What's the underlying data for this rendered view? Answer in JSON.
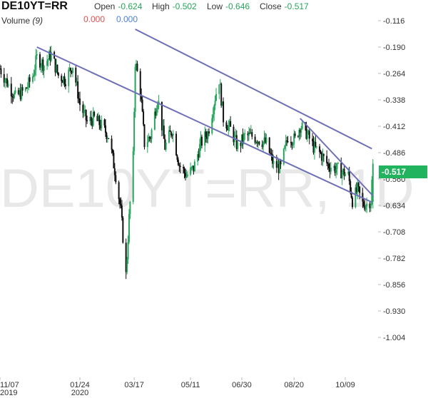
{
  "header": {
    "symbol": "DE10YT=RR",
    "open_label": "Open",
    "open_value": "-0.624",
    "high_label": "High",
    "high_value": "-0.502",
    "low_label": "Low",
    "low_value": "-0.646",
    "close_label": "Close",
    "close_value": "-0.517",
    "volume_label": "Volume",
    "volume_period": "(9)",
    "volume_value_1": "0.000",
    "volume_value_2": "0.000"
  },
  "watermark": "DE10YT=RR, 1D",
  "last_price_label": "-0.517",
  "colors": {
    "up": "#26a65b",
    "down": "#111111",
    "trendline": "#6f6fb8",
    "badge": "#22b35e",
    "watermark": "#e8e8e8"
  },
  "chart_data": {
    "type": "candlestick",
    "title": "DE10YT=RR",
    "ylim": [
      -1.05,
      -0.09
    ],
    "y_ticks": [
      "-0.116",
      "-0.190",
      "-0.264",
      "-0.338",
      "-0.412",
      "-0.486",
      "-0.560",
      "-0.634",
      "-0.708",
      "-0.782",
      "-0.856",
      "-0.930",
      "-1.004"
    ],
    "x_ticks": [
      {
        "label": "11/07",
        "sub": "2019"
      },
      {
        "label": "01/24",
        "sub": "2020"
      },
      {
        "label": "03/17",
        "sub": ""
      },
      {
        "label": "05/11",
        "sub": ""
      },
      {
        "label": "06/30",
        "sub": ""
      },
      {
        "label": "08/20",
        "sub": ""
      },
      {
        "label": "10/09",
        "sub": ""
      }
    ],
    "trendlines": [
      {
        "x1": "2019-12-13",
        "y1": -0.19,
        "x2": "2020-11-04",
        "y2": -0.625
      },
      {
        "x1": "2020-03-18",
        "y1": -0.14,
        "x2": "2020-11-04",
        "y2": -0.475
      },
      {
        "x1": "2020-08-26",
        "y1": -0.39,
        "x2": "2020-11-05",
        "y2": -0.607
      }
    ],
    "close_path": [
      [
        "2019-11-07",
        -0.25
      ],
      [
        "2019-11-14",
        -0.29
      ],
      [
        "2019-11-22",
        -0.33
      ],
      [
        "2019-12-02",
        -0.31
      ],
      [
        "2019-12-09",
        -0.27
      ],
      [
        "2019-12-13",
        -0.22
      ],
      [
        "2019-12-20",
        -0.24
      ],
      [
        "2019-12-27",
        -0.21
      ],
      [
        "2020-01-03",
        -0.27
      ],
      [
        "2020-01-10",
        -0.28
      ],
      [
        "2020-01-17",
        -0.24
      ],
      [
        "2020-01-24",
        -0.35
      ],
      [
        "2020-01-31",
        -0.4
      ],
      [
        "2020-02-07",
        -0.39
      ],
      [
        "2020-02-14",
        -0.41
      ],
      [
        "2020-02-21",
        -0.44
      ],
      [
        "2020-02-28",
        -0.55
      ],
      [
        "2020-03-04",
        -0.65
      ],
      [
        "2020-03-09",
        -0.83
      ],
      [
        "2020-03-12",
        -0.67
      ],
      [
        "2020-03-16",
        -0.5
      ],
      [
        "2020-03-18",
        -0.23
      ],
      [
        "2020-03-23",
        -0.31
      ],
      [
        "2020-03-27",
        -0.46
      ],
      [
        "2020-04-02",
        -0.44
      ],
      [
        "2020-04-09",
        -0.33
      ],
      [
        "2020-04-16",
        -0.47
      ],
      [
        "2020-04-23",
        -0.42
      ],
      [
        "2020-04-30",
        -0.52
      ],
      [
        "2020-05-07",
        -0.55
      ],
      [
        "2020-05-14",
        -0.53
      ],
      [
        "2020-05-21",
        -0.46
      ],
      [
        "2020-05-28",
        -0.43
      ],
      [
        "2020-06-04",
        -0.33
      ],
      [
        "2020-06-08",
        -0.28
      ],
      [
        "2020-06-12",
        -0.39
      ],
      [
        "2020-06-19",
        -0.42
      ],
      [
        "2020-06-26",
        -0.47
      ],
      [
        "2020-07-03",
        -0.44
      ],
      [
        "2020-07-10",
        -0.44
      ],
      [
        "2020-07-17",
        -0.45
      ],
      [
        "2020-07-24",
        -0.46
      ],
      [
        "2020-07-31",
        -0.52
      ],
      [
        "2020-08-07",
        -0.53
      ],
      [
        "2020-08-14",
        -0.44
      ],
      [
        "2020-08-21",
        -0.45
      ],
      [
        "2020-08-26",
        -0.41
      ],
      [
        "2020-09-01",
        -0.43
      ],
      [
        "2020-09-08",
        -0.47
      ],
      [
        "2020-09-15",
        -0.49
      ],
      [
        "2020-09-22",
        -0.52
      ],
      [
        "2020-09-29",
        -0.53
      ],
      [
        "2020-10-06",
        -0.54
      ],
      [
        "2020-10-12",
        -0.55
      ],
      [
        "2020-10-16",
        -0.62
      ],
      [
        "2020-10-21",
        -0.59
      ],
      [
        "2020-10-26",
        -0.63
      ],
      [
        "2020-10-30",
        -0.63
      ],
      [
        "2020-11-03",
        -0.62
      ],
      [
        "2020-11-05",
        -0.517
      ]
    ]
  }
}
